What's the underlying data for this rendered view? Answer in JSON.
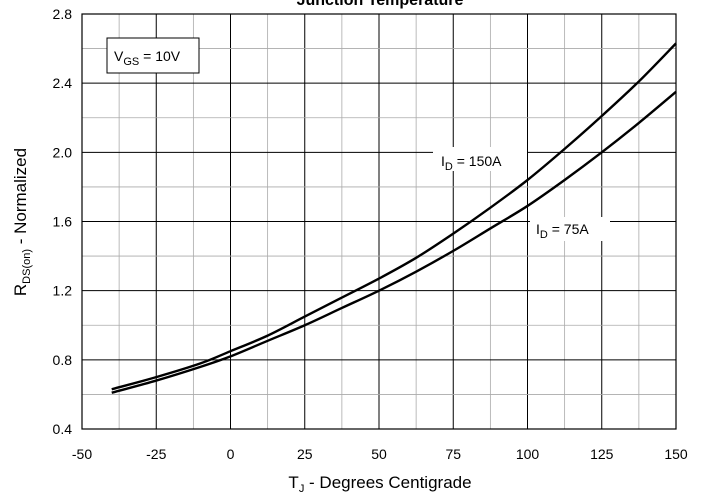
{
  "chart_data": {
    "type": "line",
    "title": "Junction Temperature",
    "xlabel_main": "T",
    "xlabel_sub": "J",
    "xlabel_rest": " - Degrees Centigrade",
    "ylabel_main": "R",
    "ylabel_sub": "DS(on)",
    "ylabel_rest": " - Normalized",
    "xlim": [
      -50,
      150
    ],
    "ylim": [
      0.4,
      2.8
    ],
    "x_ticks": [
      -50,
      -25,
      0,
      25,
      50,
      75,
      100,
      125,
      150
    ],
    "x_tick_labels": [
      "-50",
      "-25",
      "0",
      "25",
      "50",
      "75",
      "100",
      "125",
      "150"
    ],
    "y_ticks": [
      0.4,
      0.8,
      1.2,
      1.6,
      2.0,
      2.4,
      2.8
    ],
    "y_tick_labels": [
      "0.4",
      "0.8",
      "1.2",
      "1.6",
      "2.0",
      "2.4",
      "2.8"
    ],
    "grid": true,
    "x_minor_step": 12.5,
    "y_minor_step": 0.2,
    "series": [
      {
        "name": "I_D = 150A",
        "x": [
          -40,
          -25,
          -10,
          0,
          12.5,
          25,
          37.5,
          50,
          62.5,
          75,
          87.5,
          100,
          112.5,
          125,
          137.5,
          150
        ],
        "y": [
          0.63,
          0.7,
          0.78,
          0.85,
          0.94,
          1.05,
          1.16,
          1.27,
          1.39,
          1.53,
          1.68,
          1.84,
          2.02,
          2.21,
          2.41,
          2.63
        ]
      },
      {
        "name": "I_D = 75A",
        "x": [
          -40,
          -25,
          -10,
          0,
          12.5,
          25,
          37.5,
          50,
          62.5,
          75,
          87.5,
          100,
          112.5,
          125,
          137.5,
          150
        ],
        "y": [
          0.61,
          0.68,
          0.76,
          0.82,
          0.91,
          1.0,
          1.1,
          1.2,
          1.31,
          1.43,
          1.56,
          1.69,
          1.84,
          2.0,
          2.17,
          2.35
        ]
      }
    ],
    "annotations": {
      "vgs": {
        "main": "V",
        "sub": "GS",
        "rest": " = 10V"
      },
      "id150": {
        "main": "I",
        "sub": "D",
        "rest": " = 150A"
      },
      "id75": {
        "main": "I",
        "sub": "D",
        "rest": " = 75A"
      }
    }
  }
}
